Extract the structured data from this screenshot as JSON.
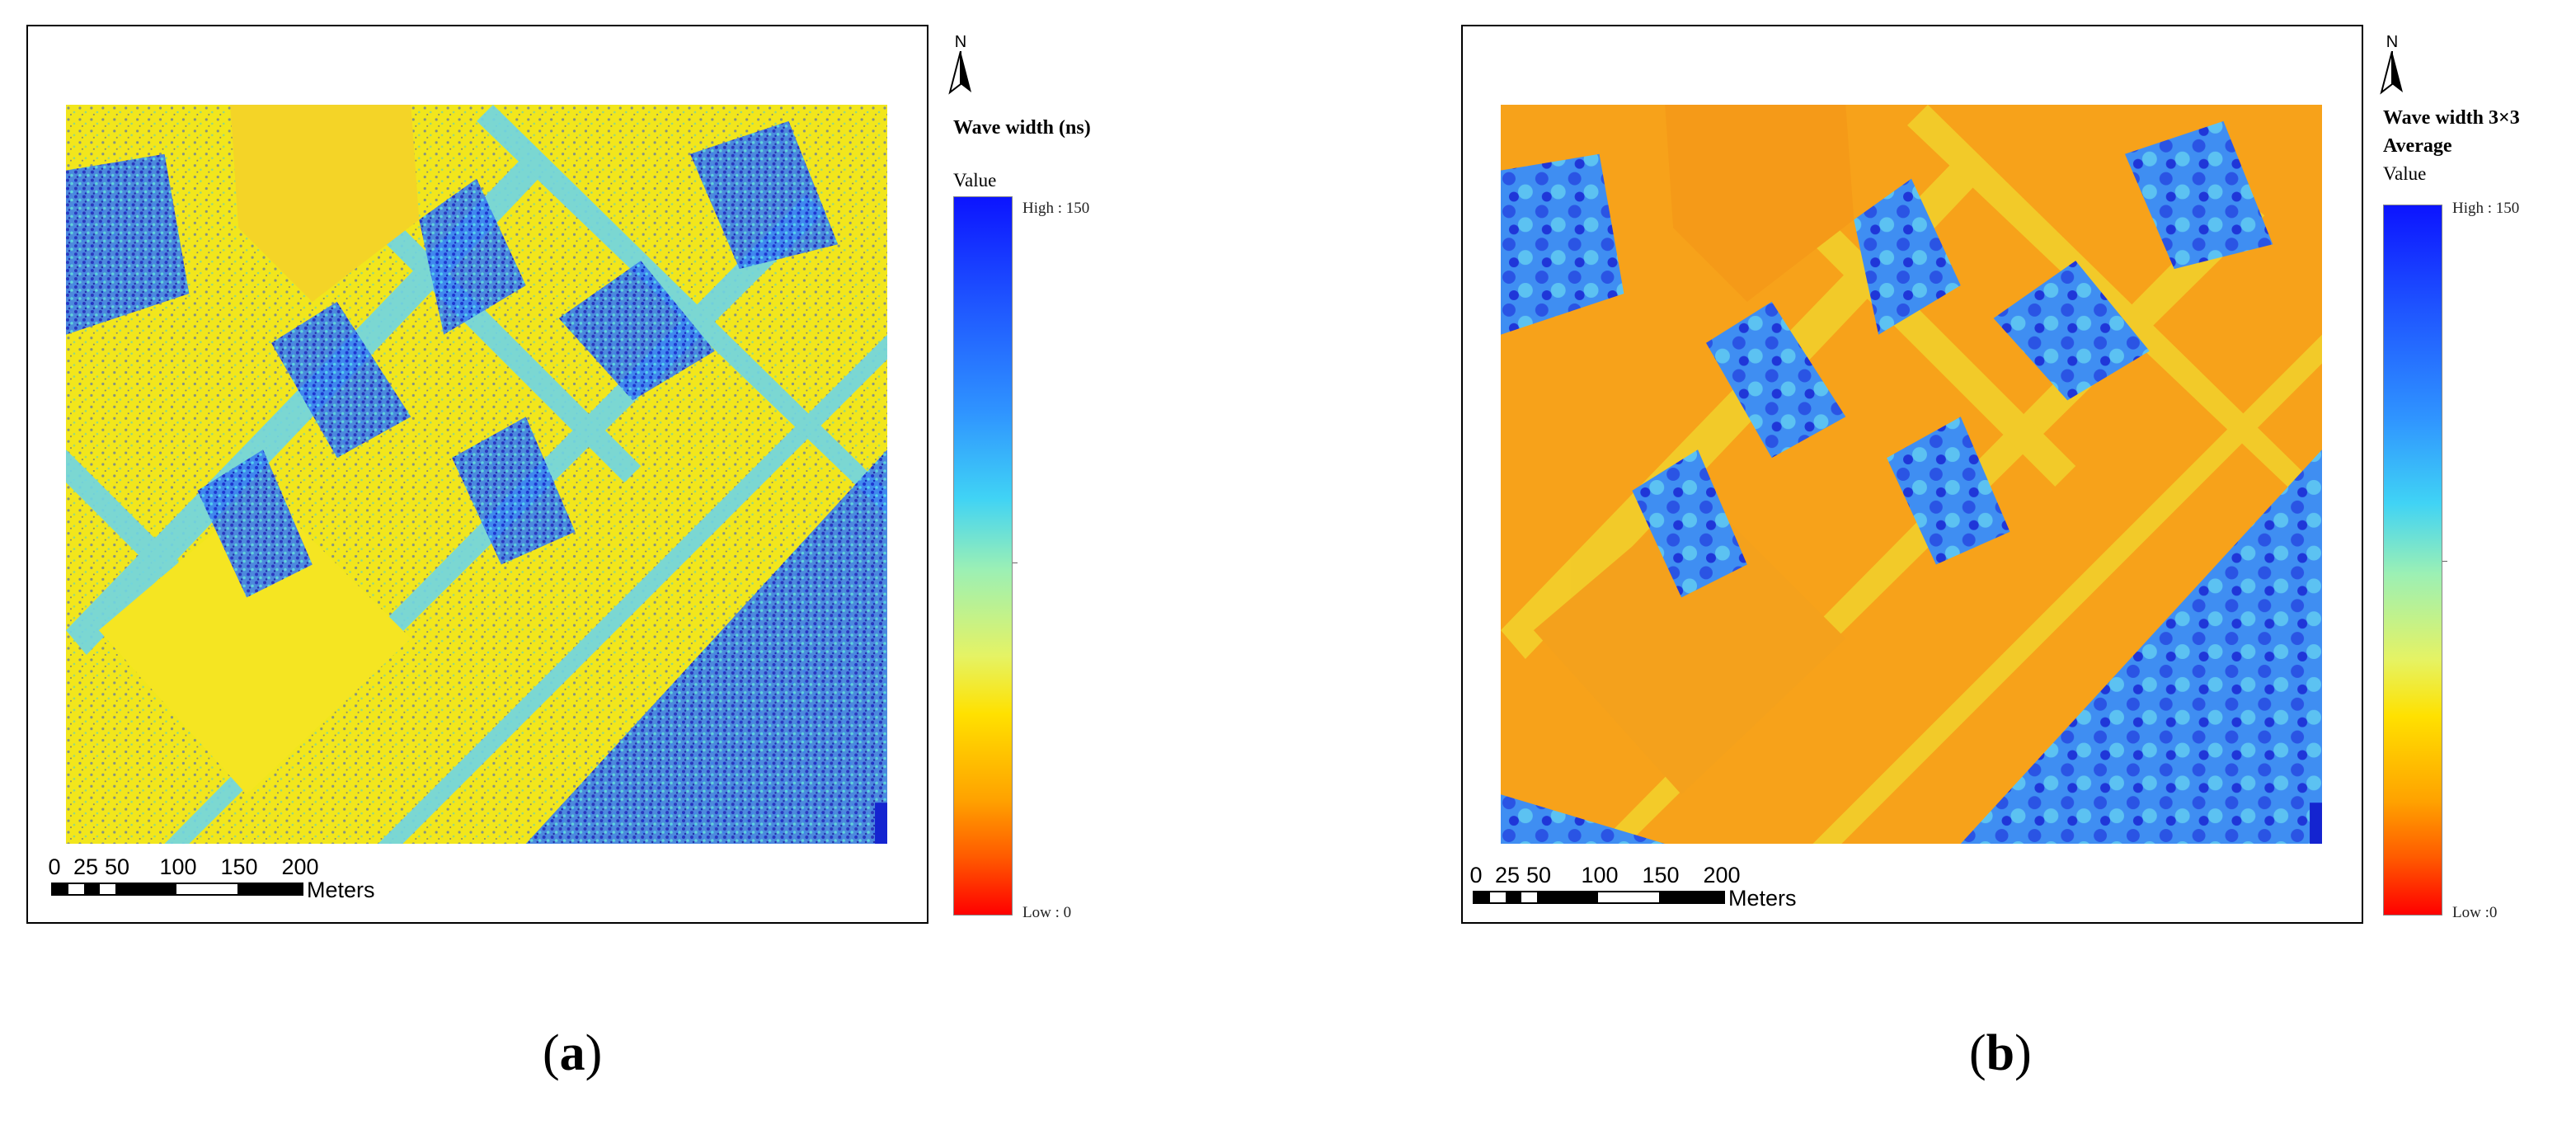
{
  "panels": [
    {
      "id": "a",
      "caption_letter": "a",
      "legend": {
        "title_lines": [
          "Wave width (ns)"
        ],
        "value_label": "Value",
        "high_label": "High : 150",
        "low_label": "Low : 0"
      },
      "scalebar": {
        "ticks": [
          "0",
          "25",
          "50",
          "100",
          "150",
          "200"
        ],
        "unit": "Meters"
      },
      "north_label": "N",
      "raster_style": "raw"
    },
    {
      "id": "b",
      "caption_letter": "b",
      "legend": {
        "title_lines": [
          "Wave width 3×3",
          "Average"
        ],
        "value_label": "Value",
        "high_label": "High : 150",
        "low_label": "Low :0"
      },
      "scalebar": {
        "ticks": [
          "0",
          "25",
          "50",
          "100",
          "150",
          "200"
        ],
        "unit": "Meters"
      },
      "north_label": "N",
      "raster_style": "smoothed"
    }
  ],
  "colors": {
    "high": "#0c14ff",
    "low": "#ff0000",
    "raw_base": "#f2e61c",
    "smoothed_base": "#f7a21a",
    "vegetation": "#2f7cf0",
    "edge": "#4fd0f0"
  }
}
